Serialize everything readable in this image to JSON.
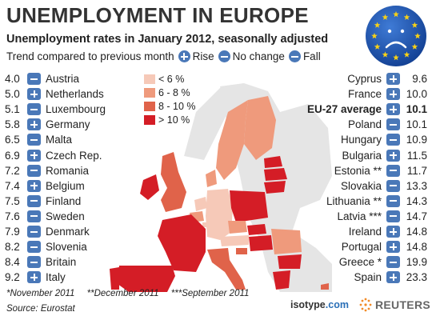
{
  "title": "UNEMPLOYMENT IN EUROPE",
  "subtitle": "Unemployment rates in January 2012, seasonally adjusted",
  "trend_legend": {
    "label": "Trend compared to previous month",
    "rise": "Rise",
    "no_change": "No change",
    "fall": "Fall"
  },
  "colors": {
    "icon": "#4a78b8",
    "lt6": "#f6c9b8",
    "6to8": "#ef9a7c",
    "8to10": "#e0634a",
    "gt10": "#d41d26"
  },
  "legend": [
    {
      "label": "< 6 %",
      "color": "#f6c9b8"
    },
    {
      "label": "6 - 8 %",
      "color": "#ef9a7c"
    },
    {
      "label": "8 - 10 %",
      "color": "#e0634a"
    },
    {
      "label": "> 10 %",
      "color": "#d41d26"
    }
  ],
  "left_list": [
    {
      "value": "4.0",
      "trend": "fall",
      "name": "Austria"
    },
    {
      "value": "5.0",
      "trend": "rise",
      "name": "Netherlands"
    },
    {
      "value": "5.1",
      "trend": "fall",
      "name": "Luxembourg"
    },
    {
      "value": "5.8",
      "trend": "rise",
      "name": "Germany"
    },
    {
      "value": "6.5",
      "trend": "fall",
      "name": "Malta"
    },
    {
      "value": "6.9",
      "trend": "rise",
      "name": "Czech Rep."
    },
    {
      "value": "7.2",
      "trend": "fall",
      "name": "Romania"
    },
    {
      "value": "7.4",
      "trend": "rise",
      "name": "Belgium"
    },
    {
      "value": "7.5",
      "trend": "fall",
      "name": "Finland"
    },
    {
      "value": "7.6",
      "trend": "fall",
      "name": "Sweden"
    },
    {
      "value": "7.9",
      "trend": "fall",
      "name": "Denmark"
    },
    {
      "value": "8.2",
      "trend": "fall",
      "name": "Slovenia"
    },
    {
      "value": "8.4",
      "trend": "fall",
      "name": "Britain"
    },
    {
      "value": "9.2",
      "trend": "rise",
      "name": "Italy"
    }
  ],
  "right_list": [
    {
      "name": "Cyprus",
      "trend": "rise",
      "value": "9.6"
    },
    {
      "name": "France",
      "trend": "rise",
      "value": "10.0"
    },
    {
      "name": "EU-27 average",
      "trend": "rise",
      "value": "10.1",
      "bold": true
    },
    {
      "name": "Poland",
      "trend": "fall",
      "value": "10.1"
    },
    {
      "name": "Hungary",
      "trend": "fall",
      "value": "10.9"
    },
    {
      "name": "Bulgaria",
      "trend": "rise",
      "value": "11.5"
    },
    {
      "name": "Estonia **",
      "trend": "fall",
      "value": "11.7"
    },
    {
      "name": "Slovakia",
      "trend": "fall",
      "value": "13.3"
    },
    {
      "name": "Lithuania **",
      "trend": "fall",
      "value": "14.3"
    },
    {
      "name": "Latvia ***",
      "trend": "fall",
      "value": "14.7"
    },
    {
      "name": "Ireland",
      "trend": "rise",
      "value": "14.8"
    },
    {
      "name": "Portugal",
      "trend": "rise",
      "value": "14.8"
    },
    {
      "name": "Greece *",
      "trend": "fall",
      "value": "19.9"
    },
    {
      "name": "Spain",
      "trend": "rise",
      "value": "23.3"
    }
  ],
  "notes": [
    "*November 2011",
    "**December 2011",
    "***September 2011"
  ],
  "source": "Source: Eurostat",
  "logos": {
    "isotype_a": "isotype",
    "isotype_b": ".com",
    "reuters": "REUTERS"
  }
}
